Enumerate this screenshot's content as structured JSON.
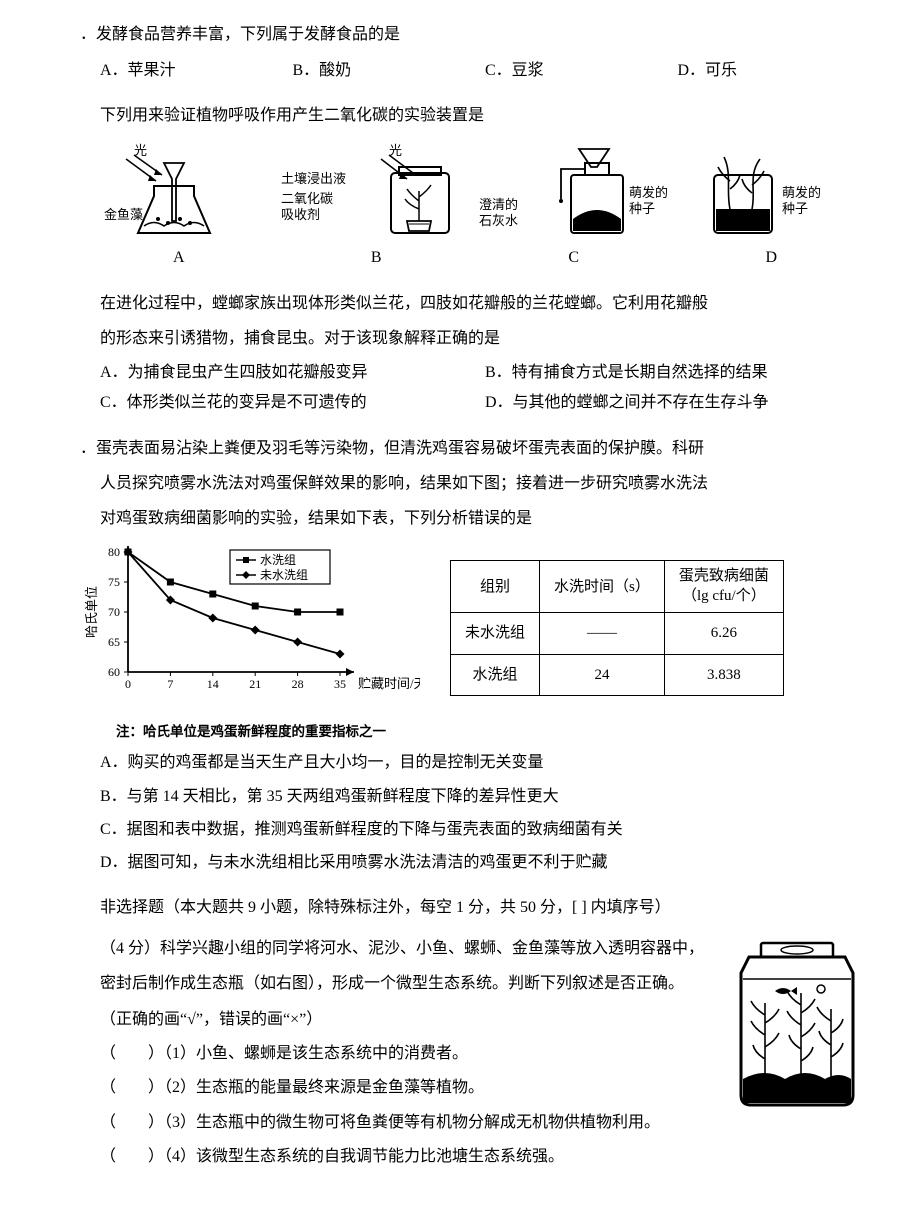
{
  "q1": {
    "stem": "．发酵食品营养丰富，下列属于发酵食品的是",
    "A": "A．苹果汁",
    "B": "B．酸奶",
    "C": "C．豆浆",
    "D": "D．可乐"
  },
  "q2": {
    "stem": "下列用来验证植物呼吸作用产生二氧化碳的实验装置是",
    "labels": {
      "light": "光",
      "algae": "金鱼藻",
      "soil": "土壤浸出液",
      "co2abs": "二氧化碳\n吸收剂",
      "limewater": "澄清的\n石灰水",
      "seeds": "萌发的\n种子",
      "A": "A",
      "B": "B",
      "C": "C",
      "D": "D"
    }
  },
  "q3": {
    "p1": "在进化过程中，螳螂家族出现体形类似兰花，四肢如花瓣般的兰花螳螂。它利用花瓣般",
    "p2": "的形态来引诱猎物，捕食昆虫。对于该现象解释正确的是",
    "A": "A．为捕食昆虫产生四肢如花瓣般变异",
    "B": "B．特有捕食方式是长期自然选择的结果",
    "C": "C．体形类似兰花的变异是不可遗传的",
    "D": "D．与其他的螳螂之间并不存在生存斗争"
  },
  "q4": {
    "p1": "．蛋壳表面易沾染上粪便及羽毛等污染物，但清洗鸡蛋容易破坏蛋壳表面的保护膜。科研",
    "p2": "人员探究喷雾水洗法对鸡蛋保鲜效果的影响，结果如下图；接着进一步研究喷雾水洗法",
    "p3": "对鸡蛋致病细菌影响的实验，结果如下表，下列分析错误的是",
    "chart": {
      "ylabel": "哈氏单位",
      "xlabel": "贮藏时间/天",
      "legend": {
        "washed": "水洗组",
        "unwashed": "未水洗组"
      },
      "x_ticks": [
        0,
        7,
        14,
        21,
        28,
        35
      ],
      "y_ticks": [
        60,
        65,
        70,
        75,
        80
      ],
      "washed_values": [
        80,
        75,
        73,
        71,
        70,
        70
      ],
      "unwashed_values": [
        80,
        72,
        69,
        67,
        65,
        63
      ],
      "colors": {
        "line": "#000000",
        "bg": "#ffffff"
      },
      "note": "注：哈氏单位是鸡蛋新鲜程度的重要指标之一"
    },
    "table": {
      "headers": [
        "组别",
        "水洗时间（s）",
        "蛋壳致病细菌\n（lg cfu/个）"
      ],
      "rows": [
        [
          "未水洗组",
          "——",
          "6.26"
        ],
        [
          "水洗组",
          "24",
          "3.838"
        ]
      ]
    },
    "A": "A．购买的鸡蛋都是当天生产且大小均一，目的是控制无关变量",
    "B": "B．与第 14 天相比，第 35 天两组鸡蛋新鲜程度下降的差异性更大",
    "C": "C．据图和表中数据，推测鸡蛋新鲜程度的下降与蛋壳表面的致病细菌有关",
    "D": "D．据图可知，与未水洗组相比采用喷雾水洗法清洁的鸡蛋更不利于贮藏"
  },
  "section2": {
    "title": "非选择题（本大题共 9 小题，除特殊标注外，每空 1 分，共 50 分，[ ] 内填序号）",
    "q": {
      "p1": "（4 分）科学兴趣小组的同学将河水、泥沙、小鱼、螺蛳、金鱼藻等放入透明容器中，",
      "p2": "密封后制作成生态瓶（如右图），形成一个微型生态系统。判断下列叙述是否正确。",
      "p3": "（正确的画“√”，错误的画“×”）",
      "s1": "（　　）（1）小鱼、螺蛳是该生态系统中的消费者。",
      "s2": "（　　）（2）生态瓶的能量最终来源是金鱼藻等植物。",
      "s3": "（　　）（3）生态瓶中的微生物可将鱼粪便等有机物分解成无机物供植物利用。",
      "s4": "（　　）（4）该微型生态系统的自我调节能力比池塘生态系统强。"
    }
  }
}
